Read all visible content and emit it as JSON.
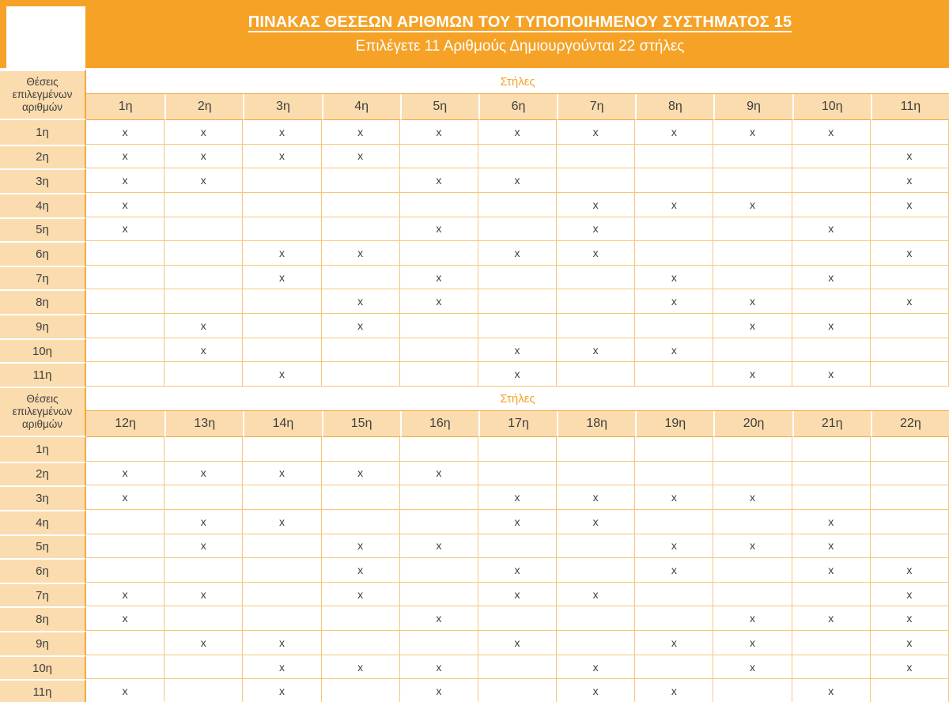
{
  "band": {
    "title": "ΠΙΝΑΚΑΣ ΘΕΣΕΩΝ ΑΡΙΘΜΩΝ ΤΟΥ ΤΥΠΟΠΟΙΗΜΕΝΟΥ ΣΥΣΤΗΜΑΤΟΣ 15",
    "subtitle": "Επιλέγετε 11 Αριθμούς Δημιουργούνται 22 στήλες"
  },
  "axis": {
    "rows_label": "Θέσεις επιλεγμένων αριθμών",
    "cols_label": "Στήλες"
  },
  "mark": "x",
  "colors": {
    "accent": "#F5A226",
    "light_cell": "#FBDCAE",
    "grid": "#F9C679",
    "grid_strong": "#F2A744",
    "text_dark": "#3E3E3E"
  },
  "sections": [
    {
      "columns": [
        "1η",
        "2η",
        "3η",
        "4η",
        "5η",
        "6η",
        "7η",
        "8η",
        "9η",
        "10η",
        "11η"
      ],
      "rows": [
        {
          "label": "1η",
          "marks": [
            1,
            1,
            1,
            1,
            1,
            1,
            1,
            1,
            1,
            1,
            0
          ]
        },
        {
          "label": "2η",
          "marks": [
            1,
            1,
            1,
            1,
            0,
            0,
            0,
            0,
            0,
            0,
            1
          ]
        },
        {
          "label": "3η",
          "marks": [
            1,
            1,
            0,
            0,
            1,
            1,
            0,
            0,
            0,
            0,
            1
          ]
        },
        {
          "label": "4η",
          "marks": [
            1,
            0,
            0,
            0,
            0,
            0,
            1,
            1,
            1,
            0,
            1
          ]
        },
        {
          "label": "5η",
          "marks": [
            1,
            0,
            0,
            0,
            1,
            0,
            1,
            0,
            0,
            1,
            0
          ]
        },
        {
          "label": "6η",
          "marks": [
            0,
            0,
            1,
            1,
            0,
            1,
            1,
            0,
            0,
            0,
            1
          ]
        },
        {
          "label": "7η",
          "marks": [
            0,
            0,
            1,
            0,
            1,
            0,
            0,
            1,
            0,
            1,
            0
          ]
        },
        {
          "label": "8η",
          "marks": [
            0,
            0,
            0,
            1,
            1,
            0,
            0,
            1,
            1,
            0,
            1
          ]
        },
        {
          "label": "9η",
          "marks": [
            0,
            1,
            0,
            1,
            0,
            0,
            0,
            0,
            1,
            1,
            0
          ]
        },
        {
          "label": "10η",
          "marks": [
            0,
            1,
            0,
            0,
            0,
            1,
            1,
            1,
            0,
            0,
            0
          ]
        },
        {
          "label": "11η",
          "marks": [
            0,
            0,
            1,
            0,
            0,
            1,
            0,
            0,
            1,
            1,
            0
          ]
        }
      ]
    },
    {
      "columns": [
        "12η",
        "13η",
        "14η",
        "15η",
        "16η",
        "17η",
        "18η",
        "19η",
        "20η",
        "21η",
        "22η"
      ],
      "rows": [
        {
          "label": "1η",
          "marks": [
            0,
            0,
            0,
            0,
            0,
            0,
            0,
            0,
            0,
            0,
            0
          ]
        },
        {
          "label": "2η",
          "marks": [
            1,
            1,
            1,
            1,
            1,
            0,
            0,
            0,
            0,
            0,
            0
          ]
        },
        {
          "label": "3η",
          "marks": [
            1,
            0,
            0,
            0,
            0,
            1,
            1,
            1,
            1,
            0,
            0
          ]
        },
        {
          "label": "4η",
          "marks": [
            0,
            1,
            1,
            0,
            0,
            1,
            1,
            0,
            0,
            1,
            0
          ]
        },
        {
          "label": "5η",
          "marks": [
            0,
            1,
            0,
            1,
            1,
            0,
            0,
            1,
            1,
            1,
            0
          ]
        },
        {
          "label": "6η",
          "marks": [
            0,
            0,
            0,
            1,
            0,
            1,
            0,
            1,
            0,
            1,
            1
          ]
        },
        {
          "label": "7η",
          "marks": [
            1,
            1,
            0,
            1,
            0,
            1,
            1,
            0,
            0,
            0,
            1
          ]
        },
        {
          "label": "8η",
          "marks": [
            1,
            0,
            0,
            0,
            1,
            0,
            0,
            0,
            1,
            1,
            1
          ]
        },
        {
          "label": "9η",
          "marks": [
            0,
            1,
            1,
            0,
            0,
            1,
            0,
            1,
            1,
            0,
            1
          ]
        },
        {
          "label": "10η",
          "marks": [
            0,
            0,
            1,
            1,
            1,
            0,
            1,
            0,
            1,
            0,
            1
          ]
        },
        {
          "label": "11η",
          "marks": [
            1,
            0,
            1,
            0,
            1,
            0,
            1,
            1,
            0,
            1,
            0
          ]
        }
      ]
    }
  ]
}
